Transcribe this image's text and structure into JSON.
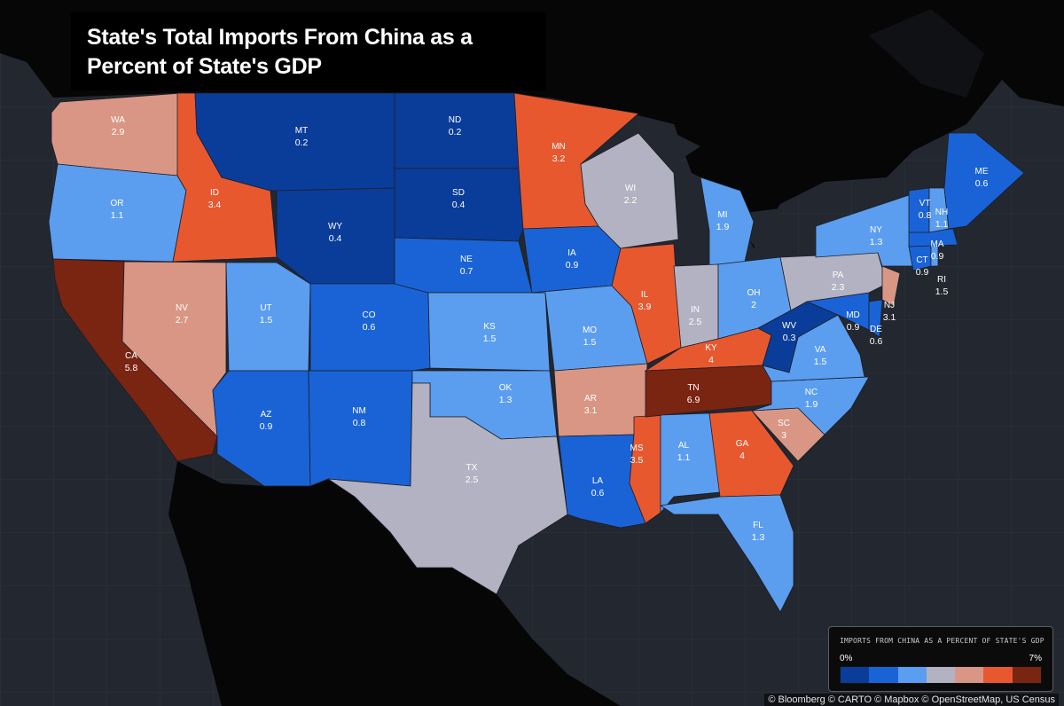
{
  "title": "State's Total Imports From China as a Percent of State's GDP",
  "legend": {
    "title": "IMPORTS FROM CHINA AS A PERCENT OF STATE'S GDP",
    "min_label": "0%",
    "max_label": "7%",
    "colors": [
      "#0a3d99",
      "#1a63d6",
      "#5b9ef0",
      "#b2b2c2",
      "#d99685",
      "#e8582f",
      "#7a2412"
    ],
    "breaks": [
      0.5,
      1.0,
      2.0,
      2.6,
      3.15,
      4.5
    ]
  },
  "attribution": "© Bloomberg © CARTO © Mapbox © OpenStreetMap, US Census",
  "map_data": {
    "type": "choropleth",
    "states": [
      {
        "code": "WA",
        "value": 2.9
      },
      {
        "code": "OR",
        "value": 1.1
      },
      {
        "code": "CA",
        "value": 5.8
      },
      {
        "code": "NV",
        "value": 2.7
      },
      {
        "code": "ID",
        "value": 3.4
      },
      {
        "code": "MT",
        "value": 0.2
      },
      {
        "code": "WY",
        "value": 0.4
      },
      {
        "code": "UT",
        "value": 1.5
      },
      {
        "code": "AZ",
        "value": 0.9
      },
      {
        "code": "CO",
        "value": 0.6
      },
      {
        "code": "NM",
        "value": 0.8
      },
      {
        "code": "ND",
        "value": 0.2
      },
      {
        "code": "SD",
        "value": 0.4
      },
      {
        "code": "NE",
        "value": 0.7
      },
      {
        "code": "KS",
        "value": 1.5
      },
      {
        "code": "OK",
        "value": 1.3
      },
      {
        "code": "TX",
        "value": 2.5
      },
      {
        "code": "MN",
        "value": 3.2
      },
      {
        "code": "IA",
        "value": 0.9
      },
      {
        "code": "MO",
        "value": 1.5
      },
      {
        "code": "AR",
        "value": 3.1
      },
      {
        "code": "LA",
        "value": 0.6
      },
      {
        "code": "WI",
        "value": 2.2
      },
      {
        "code": "IL",
        "value": 3.9
      },
      {
        "code": "MS",
        "value": 3.5
      },
      {
        "code": "MI",
        "value": 1.9
      },
      {
        "code": "IN",
        "value": 2.5
      },
      {
        "code": "OH",
        "value": 2
      },
      {
        "code": "KY",
        "value": 4
      },
      {
        "code": "TN",
        "value": 6.9
      },
      {
        "code": "AL",
        "value": 1.1
      },
      {
        "code": "GA",
        "value": 4
      },
      {
        "code": "FL",
        "value": 1.3
      },
      {
        "code": "SC",
        "value": 3
      },
      {
        "code": "NC",
        "value": 1.9
      },
      {
        "code": "VA",
        "value": 1.5
      },
      {
        "code": "WV",
        "value": 0.3
      },
      {
        "code": "MD",
        "value": 0.9
      },
      {
        "code": "DE",
        "value": 0.6
      },
      {
        "code": "PA",
        "value": 2.3
      },
      {
        "code": "NJ",
        "value": 3.1
      },
      {
        "code": "NY",
        "value": 1.3
      },
      {
        "code": "CT",
        "value": 0.9
      },
      {
        "code": "RI",
        "value": 1.5
      },
      {
        "code": "MA",
        "value": 0.9
      },
      {
        "code": "VT",
        "value": 0.8
      },
      {
        "code": "NH",
        "value": 1.1
      },
      {
        "code": "ME",
        "value": 0.6
      }
    ]
  }
}
